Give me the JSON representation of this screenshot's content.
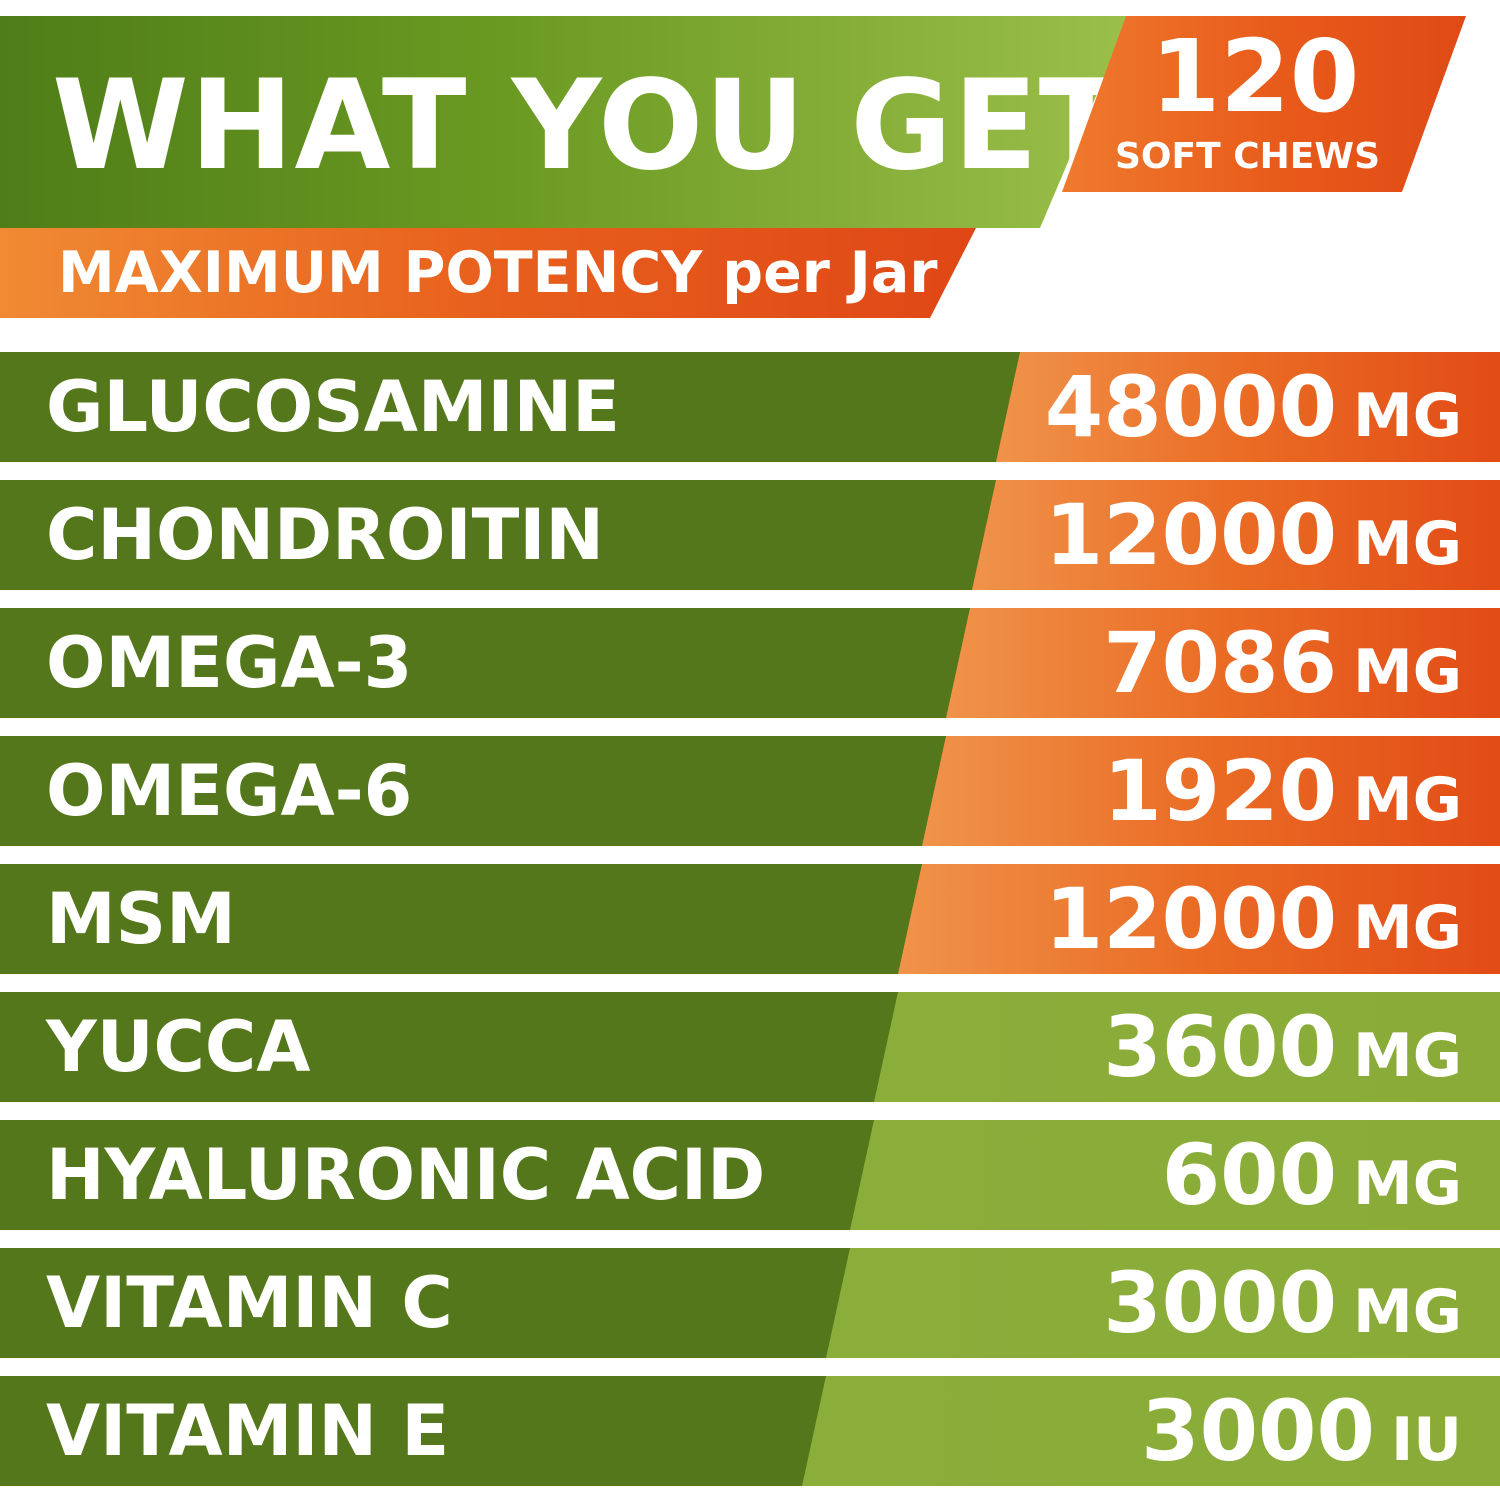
{
  "header": {
    "title": "WHAT YOU GET",
    "subtitle": "MAXIMUM POTENCY per Jar"
  },
  "badge": {
    "count": "120",
    "caption": "SOFT CHEWS"
  },
  "ingredients": [
    {
      "name": "GLUCOSAMINE",
      "amount": "48000",
      "unit": "MG",
      "highlight": "orange"
    },
    {
      "name": "CHONDROITIN",
      "amount": "12000",
      "unit": "MG",
      "highlight": "orange"
    },
    {
      "name": "OMEGA-3",
      "amount": "7086",
      "unit": "MG",
      "highlight": "orange"
    },
    {
      "name": "OMEGA-6",
      "amount": "1920",
      "unit": "MG",
      "highlight": "orange"
    },
    {
      "name": "MSM",
      "amount": "12000",
      "unit": "MG",
      "highlight": "orange"
    },
    {
      "name": "YUCCA",
      "amount": "3600",
      "unit": "MG",
      "highlight": "green"
    },
    {
      "name": "HYALURONIC ACID",
      "amount": "600",
      "unit": "MG",
      "highlight": "green"
    },
    {
      "name": "VITAMIN C",
      "amount": "3000",
      "unit": "MG",
      "highlight": "green"
    },
    {
      "name": "VITAMIN E",
      "amount": "3000",
      "unit": "IU",
      "highlight": "green"
    }
  ],
  "colors": {
    "dark_green": "#53771a",
    "light_green": "#8bad3a",
    "orange": "#e85a1a"
  }
}
